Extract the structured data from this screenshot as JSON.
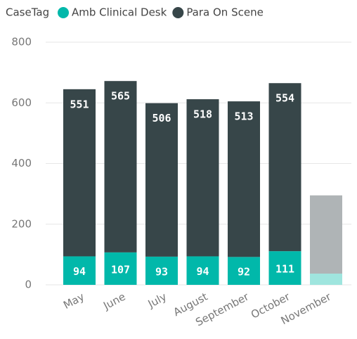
{
  "chart_data": {
    "type": "stacked_bar",
    "legend_title": "CaseTag",
    "categories": [
      "May",
      "June",
      "July",
      "August",
      "September",
      "October",
      "November"
    ],
    "series": [
      {
        "name": "Amb Clinical Desk",
        "color": "#01B8AA",
        "point_colors": [
          "#01B8AA",
          "#01B8AA",
          "#01B8AA",
          "#01B8AA",
          "#01B8AA",
          "#01B8AA",
          "#9FE5DE"
        ],
        "values": [
          94,
          107,
          93,
          94,
          92,
          111,
          37
        ],
        "value_labels": [
          "94",
          "107",
          "93",
          "94",
          "92",
          "111",
          null
        ]
      },
      {
        "name": "Para On Scene",
        "color": "#374649",
        "point_colors": [
          "#374649",
          "#374649",
          "#374649",
          "#374649",
          "#374649",
          "#374649",
          "#AFB4B6"
        ],
        "values": [
          551,
          565,
          506,
          518,
          513,
          554,
          258
        ],
        "value_labels": [
          "551",
          "565",
          "506",
          "518",
          "513",
          "554",
          null
        ]
      }
    ],
    "ylim": [
      0,
      800
    ],
    "yticks": [
      0,
      200,
      400,
      600,
      800
    ],
    "grid": true,
    "legend": "top-left"
  }
}
